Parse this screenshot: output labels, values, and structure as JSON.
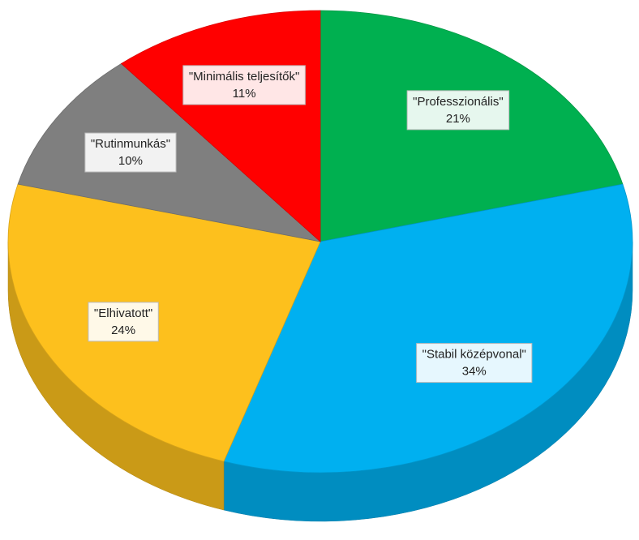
{
  "chart_data": {
    "type": "pie",
    "categories": [
      "\"Professzionális\"",
      "\"Stabil középvonal\"",
      "\"Elhivatott\"",
      "\"Rutinmunkás\"",
      "\"Minimális teljesítők\""
    ],
    "values": [
      21,
      34,
      24,
      10,
      11
    ],
    "value_labels": [
      "21%",
      "34%",
      "24%",
      "10%",
      "11%"
    ],
    "colors": [
      "#00b050",
      "#00b0f0",
      "#fdc01d",
      "#7f7f7f",
      "#ff0000"
    ]
  }
}
